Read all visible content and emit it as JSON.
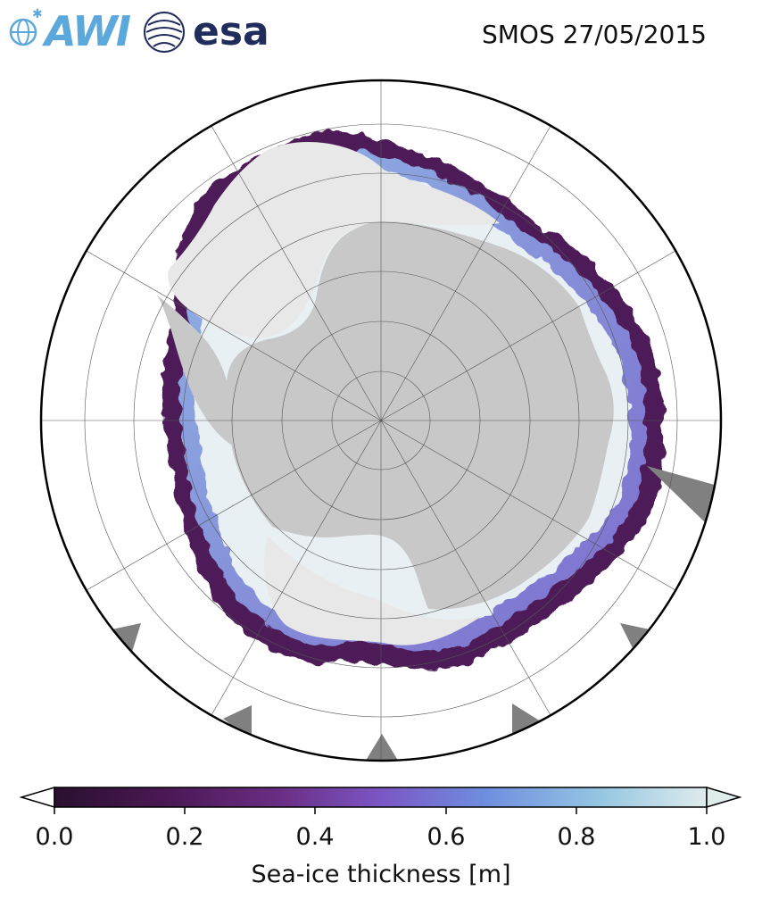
{
  "header": {
    "awi_logo_text": "AWI",
    "esa_logo_text": "esa",
    "title": "SMOS 27/05/2015"
  },
  "colorbar": {
    "label": "Sea-ice thickness [m]",
    "range": [
      0.0,
      1.0
    ],
    "extend": "both",
    "tick_labels": [
      "0.0",
      "0.2",
      "0.4",
      "0.6",
      "0.8",
      "1.0"
    ],
    "colors": [
      "#2a0f2f",
      "#4a1854",
      "#6a2c82",
      "#7b56c4",
      "#6e8ee0",
      "#93c4e2",
      "#dfecec"
    ]
  },
  "map": {
    "projection": "south-polar-stereographic",
    "gridlines": true,
    "land_color": "#c8c8c8",
    "ice_shelf_color": "#e8e8e8",
    "missing_color": "#808080",
    "ocean_color": "#ffffff"
  }
}
